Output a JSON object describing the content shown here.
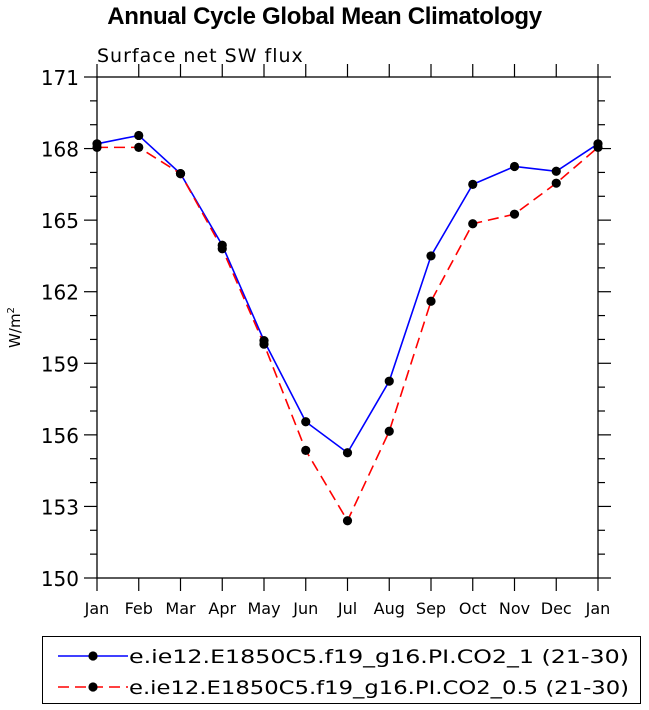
{
  "title": "Annual Cycle Global Mean Climatology",
  "chart_data": {
    "type": "line",
    "title": "Annual Cycle Global Mean Climatology",
    "subtitle": "Surface net SW flux",
    "xlabel": "",
    "ylabel": "W/m",
    "ylabel_superscript": "2",
    "categories": [
      "Jan",
      "Feb",
      "Mar",
      "Apr",
      "May",
      "Jun",
      "Jul",
      "Aug",
      "Sep",
      "Oct",
      "Nov",
      "Dec",
      "Jan"
    ],
    "ylim": [
      150,
      171
    ],
    "yticks": [
      150,
      153,
      156,
      159,
      162,
      165,
      168,
      171
    ],
    "grid": false,
    "legend_position": "bottom",
    "series": [
      {
        "name": "e.ie12.E1850C5.f19_g16.PI.CO2_1 (21-30)",
        "color": "#0000ff",
        "dash": "solid",
        "values": [
          168.2,
          168.55,
          166.95,
          163.95,
          159.95,
          156.55,
          155.25,
          158.25,
          163.5,
          166.5,
          167.25,
          167.05,
          168.2
        ]
      },
      {
        "name": "e.ie12.E1850C5.f19_g16.PI.CO2_0.5 (21-30)",
        "color": "#ff0000",
        "dash": "dashed",
        "values": [
          168.05,
          168.05,
          166.95,
          163.8,
          159.8,
          155.35,
          152.4,
          156.15,
          161.6,
          164.85,
          165.25,
          166.55,
          168.05
        ]
      }
    ]
  }
}
